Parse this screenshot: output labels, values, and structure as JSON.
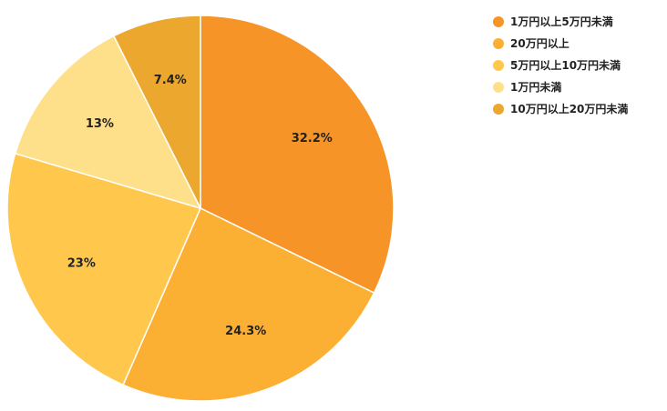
{
  "chart_data": {
    "type": "pie",
    "title": "",
    "start_angle_deg": 0,
    "direction": "clockwise",
    "legend_position": "top-right",
    "slices": [
      {
        "label": "1万円以上5万円未満",
        "value": 32.2,
        "display": "32.2%",
        "color": "#F79428"
      },
      {
        "label": "20万円以上",
        "value": 24.3,
        "display": "24.3%",
        "color": "#FBB034"
      },
      {
        "label": "5万円以上10万円未満",
        "value": 23.0,
        "display": "23%",
        "color": "#FFC84D"
      },
      {
        "label": "1万円未満",
        "value": 13.0,
        "display": "13%",
        "color": "#FFE08A"
      },
      {
        "label": "10万円以上20万円未満",
        "value": 7.4,
        "display": "7.4%",
        "color": "#ECA72E"
      }
    ]
  }
}
